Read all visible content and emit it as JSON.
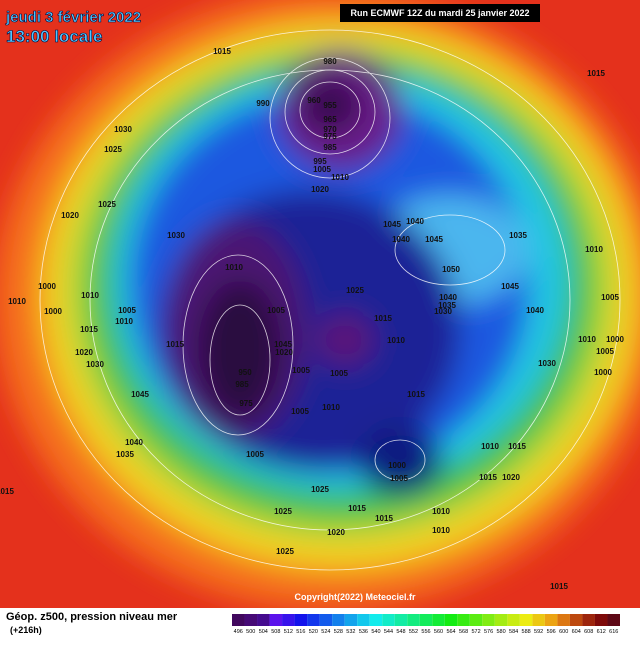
{
  "header": {
    "date": "jeudi 3 février 2022",
    "time": "13:00 locale",
    "run": "Run ECMWF 12Z du mardi 25 janvier 2022"
  },
  "isobars": [
    "1015",
    "980",
    "990",
    "960",
    "955",
    "965",
    "970",
    "975",
    "985",
    "995",
    "1005",
    "1010",
    "1020",
    "1015",
    "1030",
    "1025",
    "1025",
    "1020",
    "1030",
    "1010",
    "1045",
    "1040",
    "1040",
    "1045",
    "1035",
    "1050",
    "1010",
    "1025",
    "1045",
    "1040",
    "1035",
    "1030",
    "1040",
    "1005",
    "1000",
    "1010",
    "1010",
    "1005",
    "1010",
    "1000",
    "1015",
    "1015",
    "1005",
    "1015",
    "1010",
    "1045",
    "1020",
    "1010",
    "1000",
    "1005",
    "1020",
    "1030",
    "1005",
    "1005",
    "950",
    "985",
    "975",
    "1045",
    "1005",
    "1010",
    "1015",
    "1030",
    "1000",
    "1040",
    "1035",
    "1005",
    "1010",
    "1015",
    "1000",
    "1005",
    "1015",
    "1020",
    "1025",
    "1015",
    "1015",
    "1010",
    "1015",
    "1025",
    "1010",
    "1020",
    "1025",
    "1015"
  ],
  "copyright": "Copyright(2022) Meteociel.fr",
  "footer": {
    "title": "Géop. z500, pression niveau mer",
    "step": "(+216h)"
  },
  "legend": [
    "496",
    "500",
    "504",
    "508",
    "512",
    "516",
    "520",
    "524",
    "528",
    "532",
    "536",
    "540",
    "544",
    "548",
    "552",
    "556",
    "560",
    "564",
    "568",
    "572",
    "576",
    "580",
    "584",
    "588",
    "592",
    "596",
    "600",
    "604",
    "608",
    "612",
    "616"
  ]
}
